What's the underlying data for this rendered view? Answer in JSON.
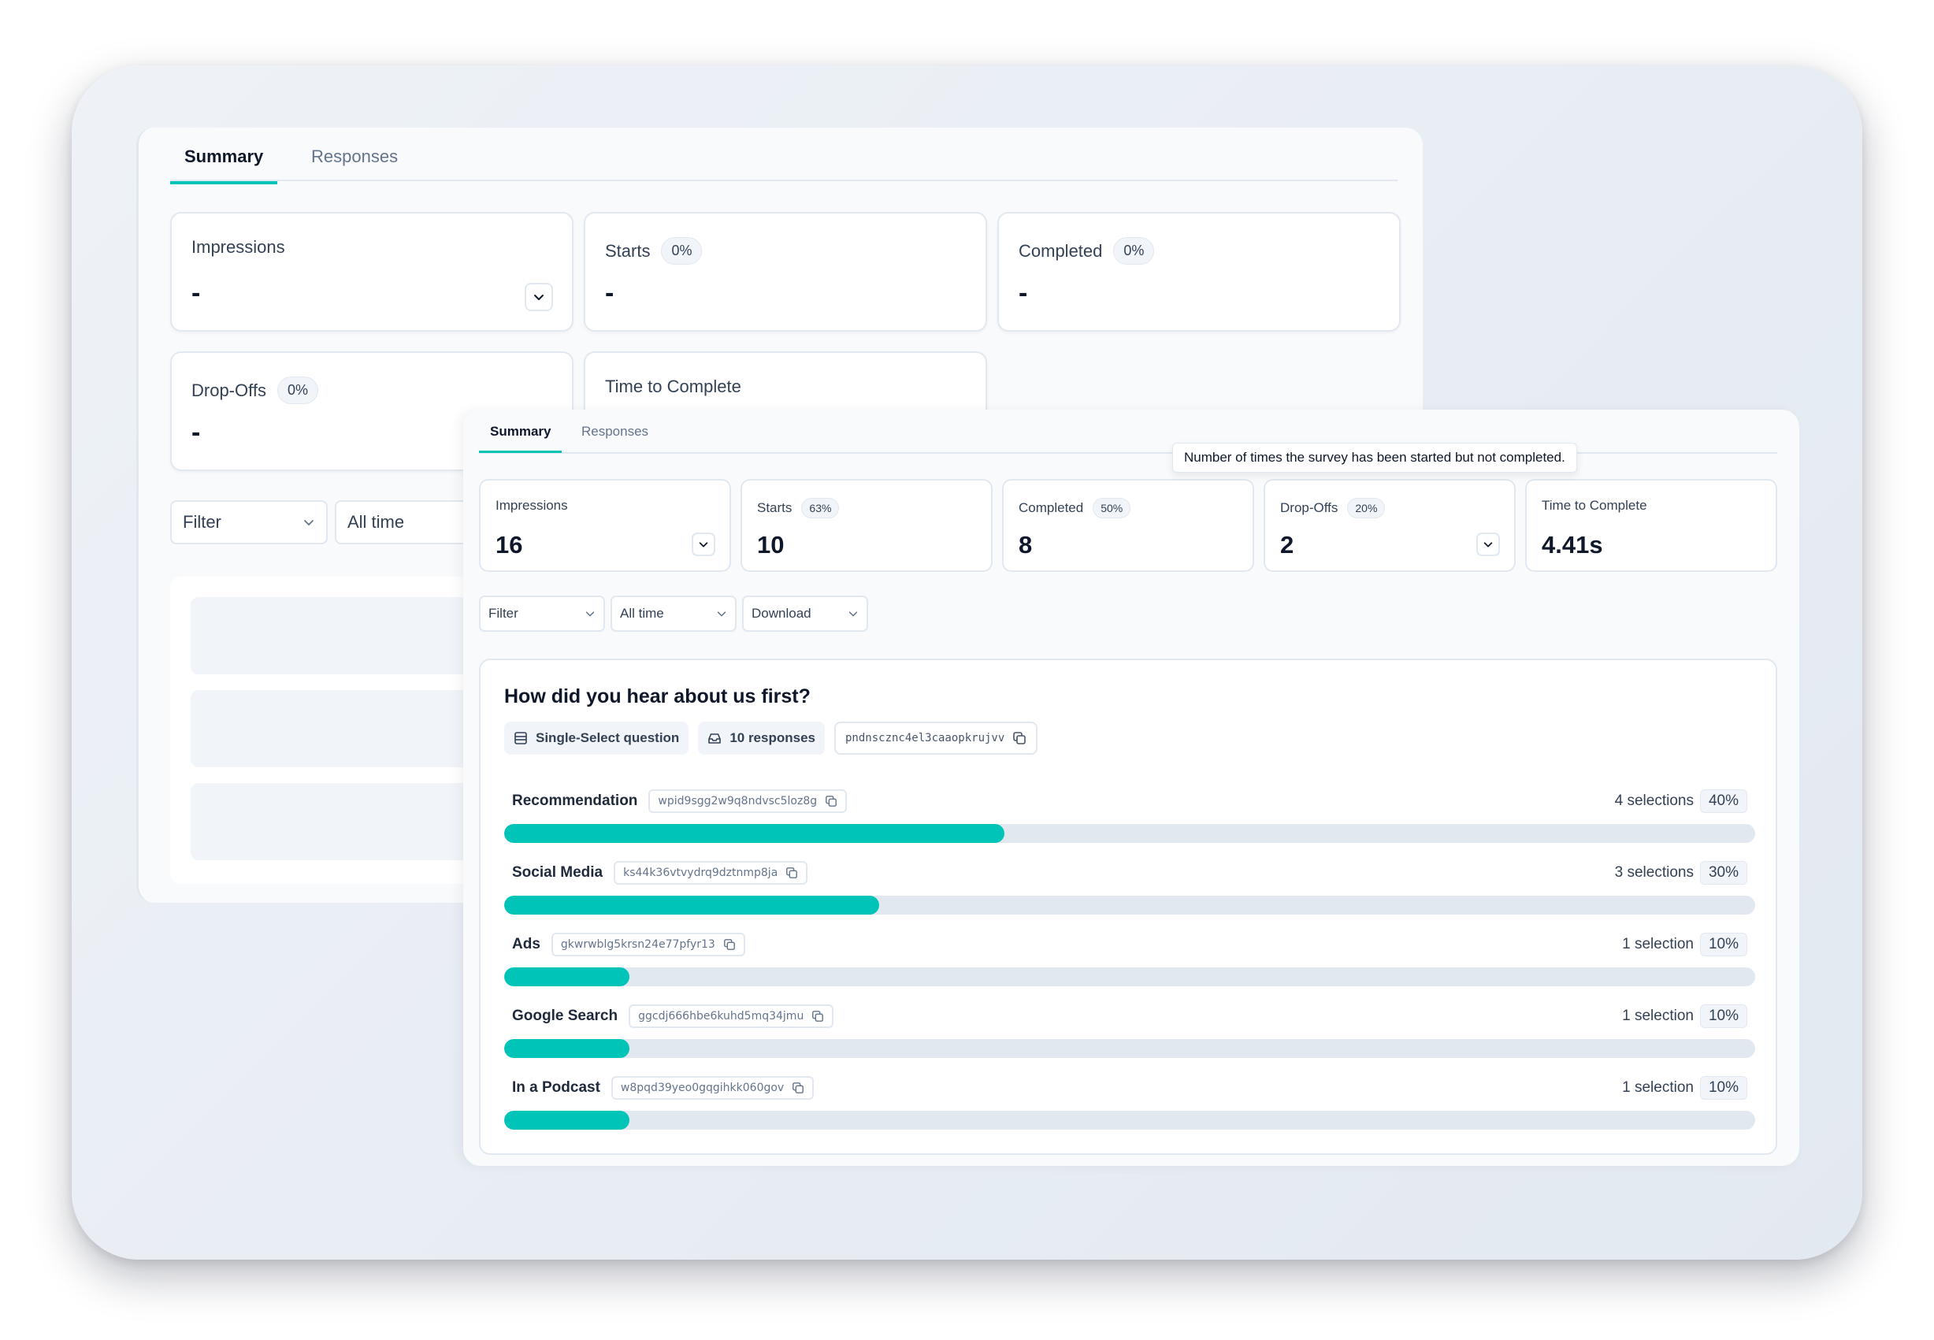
{
  "back": {
    "tabs": [
      {
        "label": "Summary"
      },
      {
        "label": "Responses"
      }
    ],
    "stats": {
      "impressions": {
        "label": "Impressions",
        "value": "-"
      },
      "starts": {
        "label": "Starts",
        "badge": "0%",
        "value": "-"
      },
      "completed": {
        "label": "Completed",
        "badge": "0%",
        "value": "-"
      },
      "dropoffs": {
        "label": "Drop-Offs",
        "badge": "0%",
        "value": "-"
      },
      "time": {
        "label": "Time to Complete"
      }
    },
    "filter_label": "Filter",
    "time_label": "All time"
  },
  "front": {
    "tabs": [
      {
        "label": "Summary"
      },
      {
        "label": "Responses"
      }
    ],
    "tooltip": "Number of times the survey has been started but not completed.",
    "stats": {
      "impressions": {
        "label": "Impressions",
        "value": "16"
      },
      "starts": {
        "label": "Starts",
        "badge": "63%",
        "value": "10"
      },
      "completed": {
        "label": "Completed",
        "badge": "50%",
        "value": "8"
      },
      "dropoffs": {
        "label": "Drop-Offs",
        "badge": "20%",
        "value": "2"
      },
      "time": {
        "label": "Time to Complete",
        "value": "4.41s"
      }
    },
    "filter_label": "Filter",
    "time_label": "All time",
    "download_label": "Download",
    "question": {
      "title": "How did you hear about us first?",
      "type_label": "Single-Select question",
      "responses_label": "10 responses",
      "id": "pndnscznc4el3caaopkrujvv",
      "options": [
        {
          "label": "Recommendation",
          "id": "wpid9sgg2w9q8ndvsc5loz8g",
          "count": "4 selections",
          "percent": "40%",
          "fraction": 0.4
        },
        {
          "label": "Social Media",
          "id": "ks44k36vtvydrq9dztnmp8ja",
          "count": "3 selections",
          "percent": "30%",
          "fraction": 0.3
        },
        {
          "label": "Ads",
          "id": "gkwrwblg5krsn24e77pfyr13",
          "count": "1 selection",
          "percent": "10%",
          "fraction": 0.1
        },
        {
          "label": "Google Search",
          "id": "ggcdj666hbe6kuhd5mq34jmu",
          "count": "1 selection",
          "percent": "10%",
          "fraction": 0.1
        },
        {
          "label": "In a Podcast",
          "id": "w8pqd39yeo0gqgihkk060gov",
          "count": "1 selection",
          "percent": "10%",
          "fraction": 0.1
        }
      ]
    }
  }
}
